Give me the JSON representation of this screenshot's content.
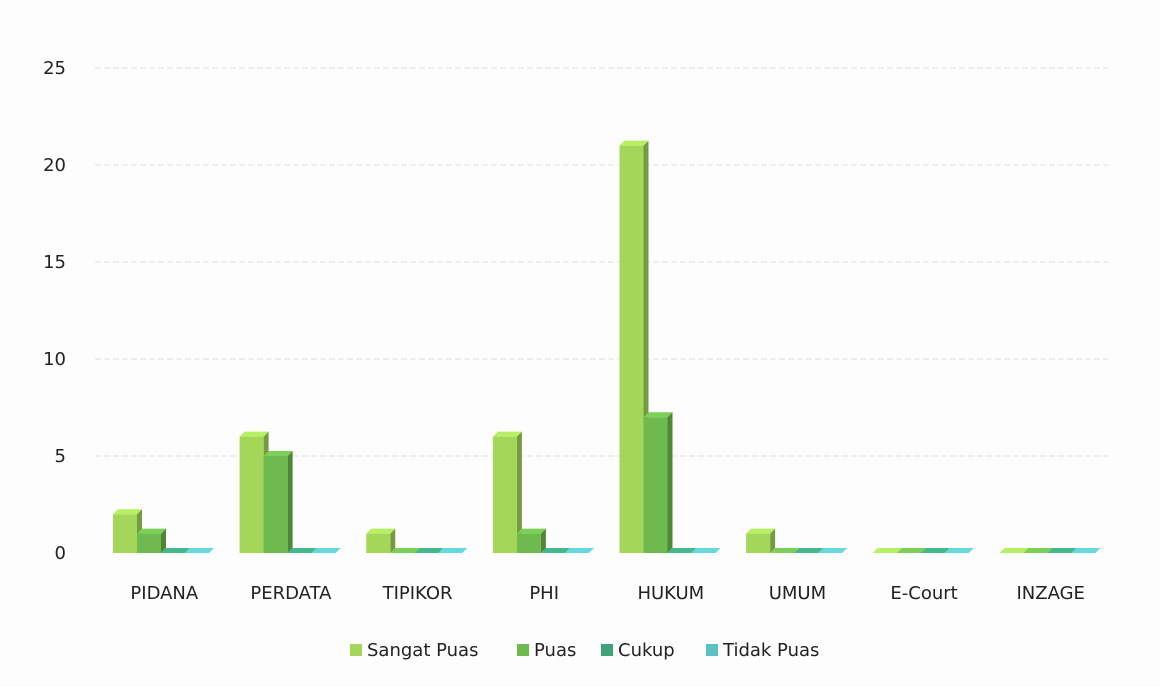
{
  "chart_data": {
    "type": "bar",
    "title": "",
    "xlabel": "",
    "ylabel": "",
    "categories": [
      "PIDANA",
      "PERDATA",
      "TIPIKOR",
      "PHI",
      "HUKUM",
      "UMUM",
      "E-Court",
      "INZAGE"
    ],
    "series": [
      {
        "name": "Sangat Puas",
        "color": "#a4d65a",
        "values": [
          2,
          6,
          1,
          6,
          21,
          1,
          0,
          0
        ]
      },
      {
        "name": "Puas",
        "color": "#6fba4e",
        "values": [
          1,
          5,
          0,
          1,
          7,
          0,
          0,
          0
        ]
      },
      {
        "name": "Cukup",
        "color": "#3ea37b",
        "values": [
          0,
          0,
          0,
          0,
          0,
          0,
          0,
          0
        ]
      },
      {
        "name": "Tidak Puas",
        "color": "#5cc1c4",
        "values": [
          0,
          0,
          0,
          0,
          0,
          0,
          0,
          0
        ]
      }
    ],
    "yticks": [
      0,
      5,
      10,
      15,
      20,
      25
    ],
    "ylim": [
      0,
      25
    ],
    "grid": true,
    "legend_position": "bottom"
  }
}
